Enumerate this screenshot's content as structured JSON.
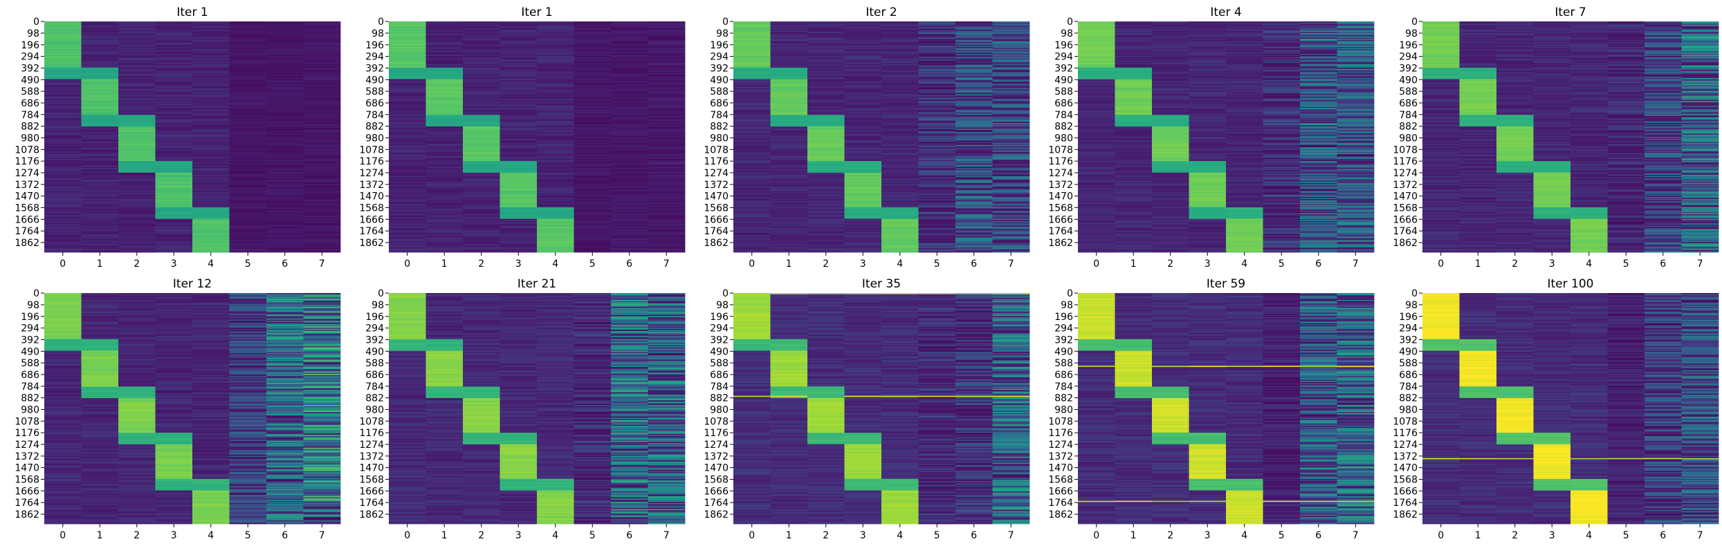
{
  "chart_data": {
    "type": "heatmap",
    "colormap": "viridis",
    "value_range": [
      0,
      1
    ],
    "grid": false,
    "y_ticks": [
      "0",
      "98",
      "196",
      "294",
      "392",
      "490",
      "588",
      "686",
      "784",
      "882",
      "980",
      "1078",
      "1176",
      "1274",
      "1372",
      "1470",
      "1568",
      "1666",
      "1764",
      "1862"
    ],
    "x_ticks": [
      "0",
      "1",
      "2",
      "3",
      "4",
      "5",
      "6",
      "7"
    ],
    "n_rows": 1944,
    "block_row_ranges": [
      [
        0,
        392
      ],
      [
        392,
        784
      ],
      [
        784,
        1176
      ],
      [
        1176,
        1568
      ],
      [
        1568,
        1944
      ]
    ],
    "panels": [
      {
        "title": "Iter 1",
        "active_intensity": 0.72,
        "overlap_intensity": 0.6,
        "background_intensity": 0.07,
        "noise_cols": [
          0.05,
          0.05,
          0.05
        ],
        "stripe_rate": 0.0
      },
      {
        "title": "Iter 1",
        "active_intensity": 0.74,
        "overlap_intensity": 0.6,
        "background_intensity": 0.07,
        "noise_cols": [
          0.05,
          0.06,
          0.06
        ],
        "stripe_rate": 0.0
      },
      {
        "title": "Iter 2",
        "active_intensity": 0.76,
        "overlap_intensity": 0.62,
        "background_intensity": 0.08,
        "noise_cols": [
          0.18,
          0.3,
          0.28
        ],
        "stripe_rate": 0.0
      },
      {
        "title": "Iter 4",
        "active_intensity": 0.78,
        "overlap_intensity": 0.63,
        "background_intensity": 0.08,
        "noise_cols": [
          0.16,
          0.34,
          0.34
        ],
        "stripe_rate": 0.0
      },
      {
        "title": "Iter 7",
        "active_intensity": 0.79,
        "overlap_intensity": 0.64,
        "background_intensity": 0.08,
        "noise_cols": [
          0.12,
          0.26,
          0.42
        ],
        "stripe_rate": 0.0
      },
      {
        "title": "Iter 12",
        "active_intensity": 0.8,
        "overlap_intensity": 0.65,
        "background_intensity": 0.08,
        "noise_cols": [
          0.22,
          0.42,
          0.52
        ],
        "stripe_rate": 0.0
      },
      {
        "title": "Iter 21",
        "active_intensity": 0.82,
        "overlap_intensity": 0.66,
        "background_intensity": 0.09,
        "noise_cols": [
          0.14,
          0.44,
          0.4
        ],
        "stripe_rate": 0.006
      },
      {
        "title": "Iter 35",
        "active_intensity": 0.86,
        "overlap_intensity": 0.68,
        "background_intensity": 0.1,
        "noise_cols": [
          0.14,
          0.18,
          0.4
        ],
        "stripe_rate": 0.008
      },
      {
        "title": "Iter 59",
        "active_intensity": 0.93,
        "overlap_intensity": 0.7,
        "background_intensity": 0.1,
        "noise_cols": [
          0.1,
          0.34,
          0.4
        ],
        "stripe_rate": 0.012
      },
      {
        "title": "Iter 100",
        "active_intensity": 0.99,
        "overlap_intensity": 0.72,
        "background_intensity": 0.1,
        "noise_cols": [
          0.1,
          0.24,
          0.3
        ],
        "stripe_rate": 0.014
      }
    ]
  }
}
